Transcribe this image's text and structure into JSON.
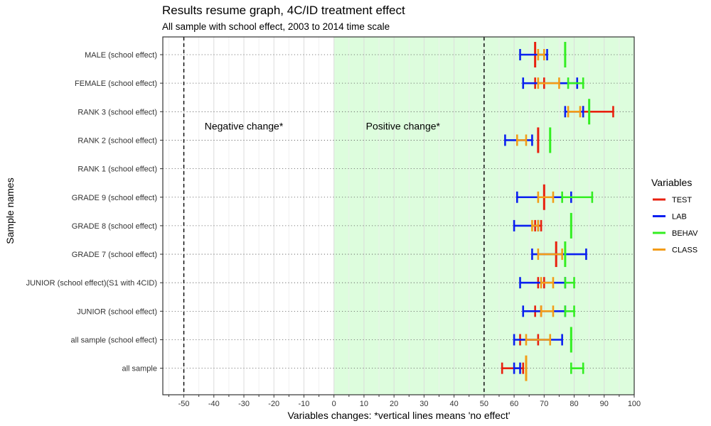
{
  "chart_data": {
    "type": "errorbar",
    "title": "Results resume graph, 4C/ID treatment effect",
    "subtitle": "All sample with school effect, 2003 to 2014 time scale",
    "xlabel": "Variables changes: *vertical lines means 'no effect'",
    "ylabel": "Sample names",
    "xlim": [
      -57,
      100
    ],
    "xticks": [
      -50,
      -40,
      -30,
      -20,
      -10,
      0,
      10,
      20,
      30,
      40,
      50,
      60,
      70,
      80,
      90,
      100
    ],
    "grid": true,
    "legend_title": "Variables",
    "legend_position": "right",
    "reference_lines": [
      -50,
      50
    ],
    "shaded_region": {
      "from": 0,
      "to": 100,
      "color": "#ddfddd"
    },
    "annotations": [
      {
        "text": "Negative change*",
        "x": -30,
        "y": "RANK 2 (school effect)",
        "offset": 0.5
      },
      {
        "text": "Positive change*",
        "x": 23,
        "y": "RANK 2 (school effect)",
        "offset": 0.5
      }
    ],
    "categories": [
      "MALE (school effect)",
      "FEMALE (school effect)",
      "RANK 3 (school effect)",
      "RANK 2 (school effect)",
      "RANK 1 (school effect)",
      "GRADE 9 (school effect)",
      "GRADE 8 (school effect)",
      "GRADE 7 (school effect)",
      "JUNIOR (school effect)(S1 with 4CID)",
      "JUNIOR (school effect)",
      "all sample (school effect)",
      "all sample"
    ],
    "series": [
      {
        "name": "TEST",
        "color": "#e8200f",
        "intervals": [
          [
            67,
            67
          ],
          [
            67,
            70
          ],
          [
            83,
            93
          ],
          [
            68,
            68
          ],
          null,
          [
            70,
            70
          ],
          [
            67,
            69
          ],
          [
            74,
            74
          ],
          [
            68,
            70
          ],
          [
            67,
            69
          ],
          [
            62,
            68
          ],
          [
            56,
            63
          ]
        ]
      },
      {
        "name": "LAB",
        "color": "#0a1ff0",
        "intervals": [
          [
            62,
            71
          ],
          [
            63,
            81
          ],
          [
            77,
            83
          ],
          [
            57,
            66
          ],
          null,
          [
            61,
            79
          ],
          [
            60,
            68
          ],
          [
            66,
            84
          ],
          [
            62,
            77
          ],
          [
            63,
            77
          ],
          [
            60,
            76
          ],
          [
            60,
            62
          ]
        ]
      },
      {
        "name": "BEHAV",
        "color": "#33ee22",
        "intervals": [
          [
            77,
            77
          ],
          [
            78,
            83
          ],
          [
            85,
            85
          ],
          [
            72,
            72
          ],
          null,
          [
            76,
            86
          ],
          [
            79,
            79
          ],
          [
            77,
            77
          ],
          [
            77,
            80
          ],
          [
            77,
            80
          ],
          [
            79,
            79
          ],
          [
            79,
            83
          ]
        ]
      },
      {
        "name": "CLASS",
        "color": "#f39c18",
        "intervals": [
          [
            68,
            70
          ],
          [
            68,
            75
          ],
          [
            78,
            82
          ],
          [
            61,
            64
          ],
          null,
          [
            68,
            73
          ],
          [
            66,
            68
          ],
          [
            68,
            76
          ],
          [
            69,
            73
          ],
          [
            69,
            73
          ],
          [
            64,
            72
          ],
          [
            64,
            64
          ]
        ]
      }
    ]
  }
}
